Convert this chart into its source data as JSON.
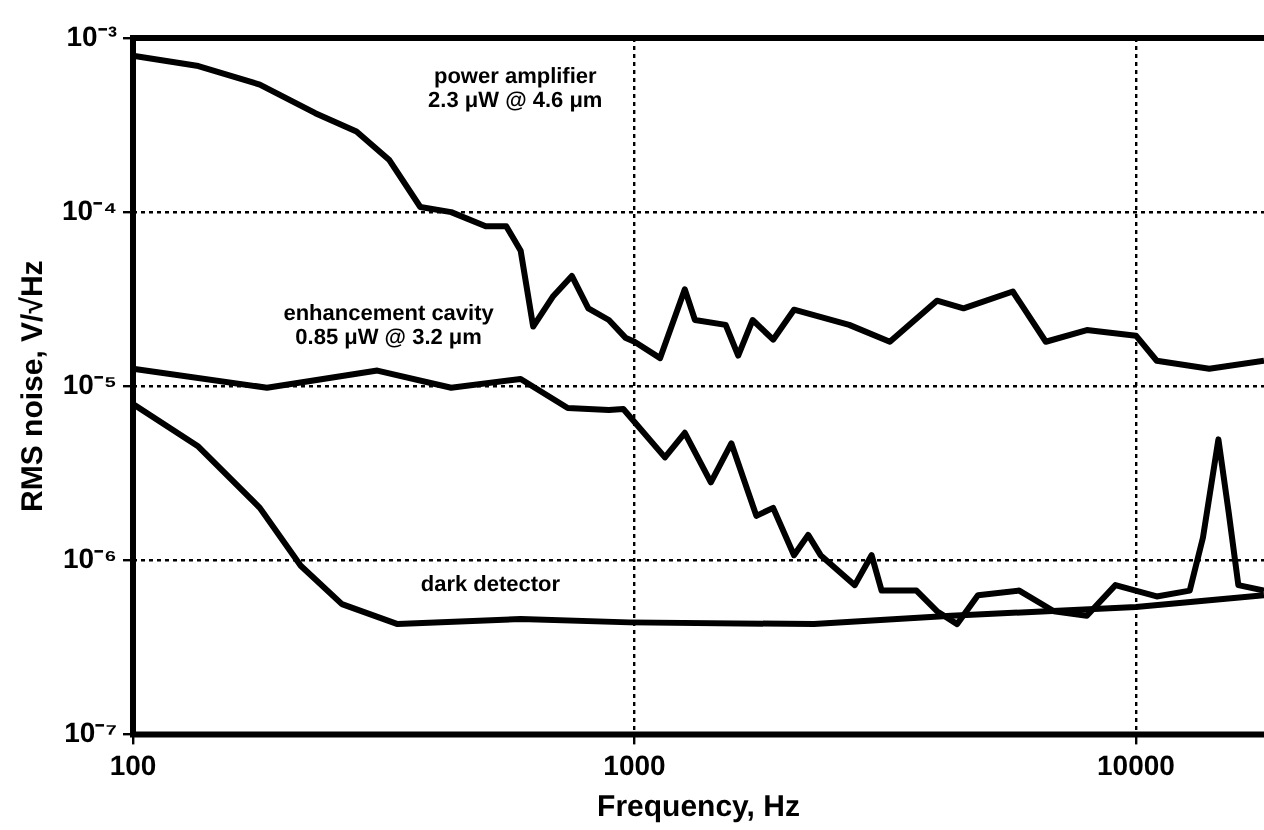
{
  "chart_data": {
    "type": "line",
    "xlabel": "Frequency, Hz",
    "ylabel": "RMS noise, V/√Hz",
    "log": "xy",
    "grid": true,
    "legend": false,
    "marker": "none",
    "line_style": "solid",
    "xlim": [
      100,
      18000
    ],
    "xticks": [
      100,
      1000,
      10000
    ],
    "ylim": [
      1e-07,
      0.001
    ],
    "yticks": [
      {
        "value": 1e-07,
        "label": "10⁻⁷"
      },
      {
        "value": 1e-06,
        "label": "10⁻⁶"
      },
      {
        "value": 1e-05,
        "label": "10⁻⁵"
      },
      {
        "value": 0.0001,
        "label": "10⁻⁴"
      },
      {
        "value": 0.001,
        "label": "10⁻³"
      }
    ],
    "series": [
      {
        "name": "power amplifier\n2.3 μW @ 4.6 μm",
        "color": "#000000",
        "x": [
          100,
          135,
          179,
          231,
          279,
          324,
          374,
          431,
          505,
          555,
          593,
          628,
          689,
          750,
          809,
          889,
          959,
          1000,
          1125,
          1260,
          1320,
          1520,
          1610,
          1720,
          1890,
          2080,
          2680,
          3230,
          4010,
          4530,
          5680,
          6610,
          7980,
          10000,
          11000,
          14000,
          18000
        ],
        "values": [
          0.00079,
          0.00069,
          0.00054,
          0.00037,
          0.00029,
          0.0002,
          0.000107,
          0.0001,
          8.3e-05,
          8.3e-05,
          6e-05,
          2.2e-05,
          3.3e-05,
          4.3e-05,
          2.8e-05,
          2.4e-05,
          1.9e-05,
          1.8e-05,
          1.45e-05,
          3.6e-05,
          2.4e-05,
          2.25e-05,
          1.5e-05,
          2.4e-05,
          1.85e-05,
          2.75e-05,
          2.25e-05,
          1.8e-05,
          3.1e-05,
          2.8e-05,
          3.5e-05,
          1.8e-05,
          2.1e-05,
          1.95e-05,
          1.4e-05,
          1.26e-05,
          1.4e-05
        ]
      },
      {
        "name": "enhancement cavity\n0.85 μW @ 3.2 μm",
        "color": "#000000",
        "x": [
          100,
          185,
          307,
          431,
          593,
          736,
          889,
          950,
          1150,
          1260,
          1420,
          1560,
          1750,
          1890,
          2080,
          2220,
          2350,
          2750,
          2970,
          3110,
          3650,
          4010,
          4400,
          4840,
          5850,
          6860,
          7980,
          9100,
          11000,
          12800,
          13600,
          14600,
          15300,
          16000,
          18000
        ],
        "values": [
          1.26e-05,
          9.8e-06,
          1.23e-05,
          9.8e-06,
          1.1e-05,
          7.5e-06,
          7.3e-06,
          7.4e-06,
          3.9e-06,
          5.4e-06,
          2.8e-06,
          4.7e-06,
          1.8e-06,
          2e-06,
          1.07e-06,
          1.4e-06,
          1.07e-06,
          7.2e-07,
          1.07e-06,
          6.7e-07,
          6.7e-07,
          5.1e-07,
          4.3e-07,
          6.3e-07,
          6.7e-07,
          5.1e-07,
          4.8e-07,
          7.2e-07,
          6.2e-07,
          6.7e-07,
          1.35e-06,
          4.95e-06,
          1.9e-06,
          7.2e-07,
          6.7e-07
        ]
      },
      {
        "name": "dark detector",
        "color": "#000000",
        "x": [
          100,
          135,
          179,
          216,
          261,
          337,
          593,
          975,
          2280,
          4280,
          10000,
          18000
        ],
        "values": [
          7.9e-06,
          4.5e-06,
          2e-06,
          9.3e-07,
          5.6e-07,
          4.3e-07,
          4.6e-07,
          4.4e-07,
          4.3e-07,
          4.8e-07,
          5.4e-07,
          6.3e-07
        ]
      }
    ]
  }
}
